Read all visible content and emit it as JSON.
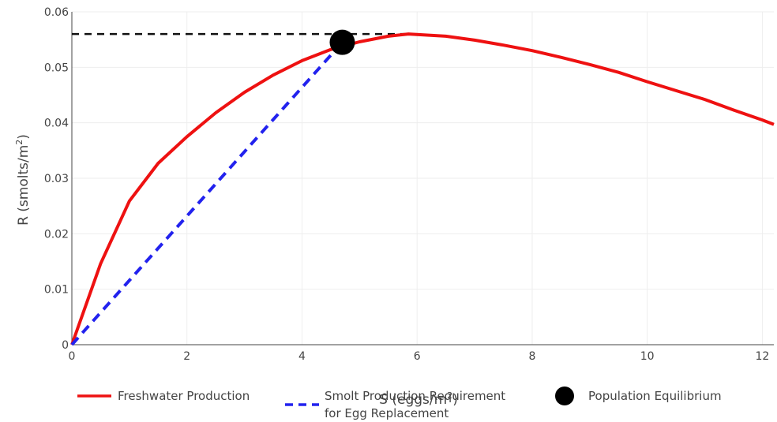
{
  "chart_data": {
    "type": "line",
    "xlabel_main": "S (eggs/m",
    "xlabel_sup": "2",
    "xlabel_end": ")",
    "ylabel_main": "R (smolts/m",
    "ylabel_sup": "2",
    "ylabel_end": ")",
    "xlim": [
      0,
      12.2
    ],
    "ylim": [
      0,
      0.06
    ],
    "x_ticks": [
      0,
      2,
      4,
      6,
      8,
      10,
      12
    ],
    "y_ticks": [
      0,
      0.01,
      0.02,
      0.03,
      0.04,
      0.05,
      0.06
    ],
    "x_tick_labels": [
      "0",
      "2",
      "4",
      "6",
      "8",
      "10",
      "12"
    ],
    "y_tick_labels": [
      "0",
      "0.01",
      "0.02",
      "0.03",
      "0.04",
      "0.05",
      "0.06"
    ],
    "grid": true,
    "legend_placement": "bottom",
    "series": [
      {
        "name": "Freshwater Production",
        "style": "solid",
        "color": "#ee1111",
        "x": [
          0,
          0.5,
          1,
          1.5,
          2,
          2.5,
          3,
          3.5,
          4,
          4.5,
          5,
          5.5,
          5.85,
          6.5,
          7,
          7.5,
          8,
          8.5,
          9,
          9.5,
          10,
          10.5,
          11,
          11.5,
          12,
          12.2
        ],
        "y": [
          0,
          0.0146,
          0.0259,
          0.0327,
          0.0375,
          0.0418,
          0.0455,
          0.0486,
          0.0512,
          0.0532,
          0.0546,
          0.0556,
          0.056,
          0.0556,
          0.0549,
          0.054,
          0.053,
          0.0518,
          0.0505,
          0.0491,
          0.0474,
          0.0458,
          0.0442,
          0.0423,
          0.0405,
          0.0397
        ]
      },
      {
        "name": "Smolt Production Requirement\nfor Egg Replacement",
        "legend_line1": "Smolt Production Requirement",
        "legend_line2": "for Egg Replacement",
        "style": "dashed",
        "color": "#2222ee",
        "x": [
          0,
          4.7
        ],
        "y": [
          0,
          0.0545
        ]
      }
    ],
    "reference_line": {
      "style": "dashed",
      "color": "#111111",
      "x": [
        0,
        5.85
      ],
      "y": [
        0.056,
        0.056
      ]
    },
    "equilibrium_point": {
      "name": "Population Equilibrium",
      "x": 4.7,
      "y": 0.0545,
      "color": "#000000"
    }
  }
}
